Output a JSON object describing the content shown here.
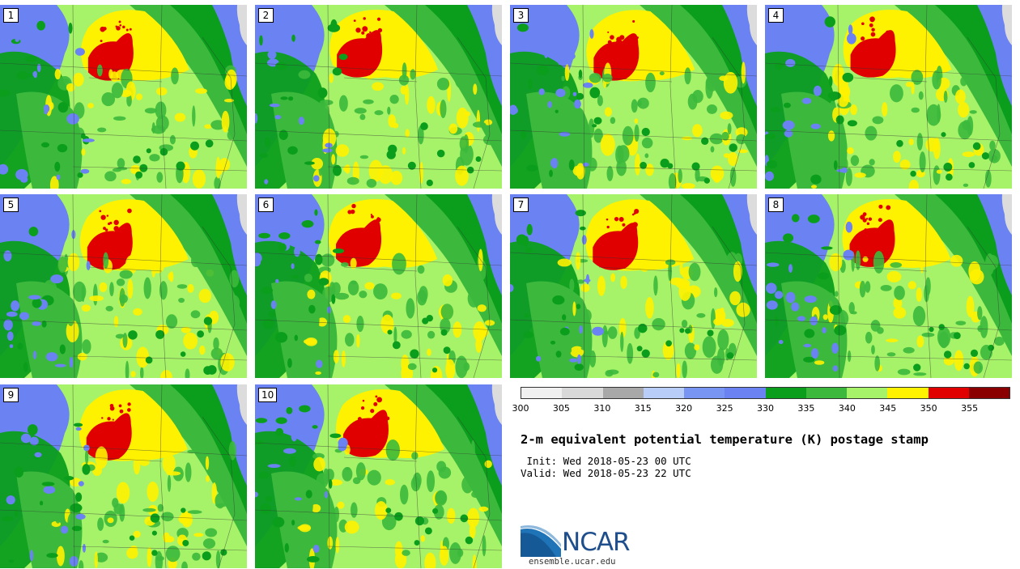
{
  "panels": [
    {
      "label": "1"
    },
    {
      "label": "2"
    },
    {
      "label": "3"
    },
    {
      "label": "4"
    },
    {
      "label": "5"
    },
    {
      "label": "6"
    },
    {
      "label": "7"
    },
    {
      "label": "8"
    },
    {
      "label": "9"
    },
    {
      "label": "10"
    }
  ],
  "colorbar": {
    "colors": [
      "#f0f0f0",
      "#d9d9d9",
      "#a8a8a8",
      "#b8cdf8",
      "#7895f4",
      "#6a82f2",
      "#0b9e1c",
      "#3cb93c",
      "#a6f268",
      "#fff200",
      "#e00000",
      "#8a0000"
    ],
    "labels": [
      "300",
      "305",
      "310",
      "315",
      "320",
      "325",
      "330",
      "335",
      "340",
      "345",
      "350",
      "355"
    ]
  },
  "title": "2-m equivalent potential temperature (K) postage stamp",
  "init": " Init: Wed 2018-05-23 00 UTC",
  "valid": "Valid: Wed 2018-05-23 22 UTC",
  "logo": {
    "text": "NCAR",
    "url": "ensemble.ucar.edu"
  }
}
